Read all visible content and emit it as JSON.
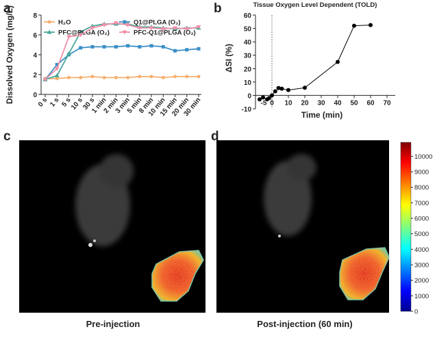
{
  "chart_data": [
    {
      "type": "line",
      "y_label": "Dissolved Oxygen (mg/L)",
      "categories": [
        "0 s",
        "1 s",
        "5 s",
        "10 s",
        "30 s",
        "1 min",
        "2 min",
        "3 min",
        "5 min",
        "8 min",
        "10 min",
        "15 min",
        "20 min",
        "30 min"
      ],
      "ylim": [
        0,
        8
      ],
      "yticks": [
        0,
        2,
        4,
        6,
        8
      ],
      "series": [
        {
          "name": "H₂O",
          "color": "#f5b070",
          "marker": "circle",
          "values": [
            1.6,
            1.6,
            1.7,
            1.7,
            1.8,
            1.7,
            1.7,
            1.7,
            1.8,
            1.8,
            1.7,
            1.8,
            1.8,
            1.8
          ]
        },
        {
          "name": "Q1@PLGA (O₂)",
          "color": "#3a8fc7",
          "marker": "square",
          "values": [
            1.5,
            3.0,
            4.0,
            4.7,
            4.8,
            4.8,
            4.8,
            4.9,
            4.8,
            4.9,
            4.8,
            4.4,
            4.5,
            4.6
          ]
        },
        {
          "name": "PFC@PLGA (O₂)",
          "color": "#4aa89a",
          "marker": "triangle",
          "values": [
            1.5,
            1.9,
            4.1,
            6.3,
            6.9,
            7.1,
            7.1,
            7.1,
            6.8,
            6.8,
            6.7,
            6.6,
            6.7,
            6.7
          ]
        },
        {
          "name": "PFC-Q1@PLGA (O₂)",
          "color": "#f090a8",
          "marker": "triangle-down",
          "values": [
            1.5,
            2.6,
            5.8,
            6.0,
            6.7,
            7.0,
            7.2,
            7.0,
            6.7,
            6.7,
            6.6,
            6.7,
            6.6,
            6.8
          ]
        }
      ]
    },
    {
      "type": "line",
      "title": "Tissue Oxygen Level Dependent (TOLD)",
      "x_label": "Time (min)",
      "y_label": "ΔSI (%)",
      "x": [
        -7.5,
        -5.4,
        -2.9,
        -1.7,
        0,
        2,
        4,
        6,
        10,
        20,
        40,
        50,
        60
      ],
      "xlim": [
        -10,
        75
      ],
      "xticks": [
        -5,
        0,
        10,
        20,
        30,
        40,
        50,
        60,
        70
      ],
      "ylim": [
        -10,
        60
      ],
      "yticks": [
        -10,
        0,
        10,
        20,
        30,
        40,
        50,
        60
      ],
      "vline": 0,
      "series": [
        {
          "color": "#000000",
          "marker": "circle",
          "values": [
            -3,
            -1.5,
            -3,
            -2,
            0,
            3,
            5.5,
            5,
            4,
            5.7,
            25,
            52,
            52.5
          ]
        }
      ]
    }
  ],
  "panel_labels": [
    "a",
    "b",
    "c",
    "d"
  ],
  "captions": [
    "Pre-injection",
    "Post-injection (60 min)"
  ],
  "colorbar": {
    "lim": [
      0,
      10900
    ],
    "ticks": [
      0,
      1000,
      2000,
      3000,
      4000,
      5000,
      6000,
      7000,
      8000,
      9000,
      10000
    ]
  }
}
